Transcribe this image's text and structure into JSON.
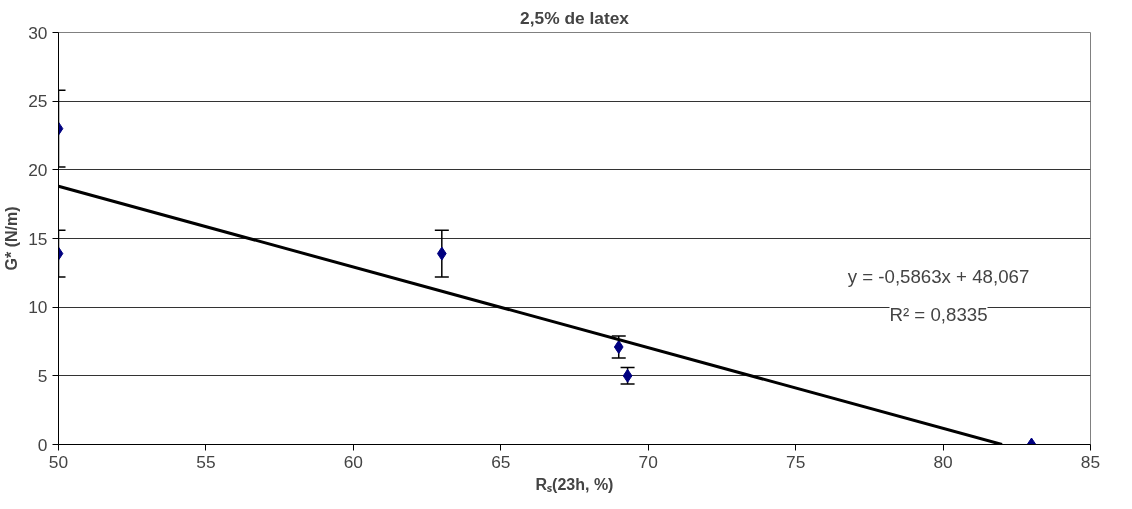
{
  "chart_data": {
    "type": "scatter",
    "title": "2,5% de latex",
    "xlabel": "Rₛ(23h, %)",
    "ylabel": "G* (N/m)",
    "series": [
      {
        "color": "#000080",
        "x": [
          50,
          50,
          63,
          69,
          69.3,
          83
        ],
        "values": [
          23,
          13.9,
          13.9,
          7.1,
          5.0,
          0
        ],
        "errors": [
          2.8,
          1.7,
          1.7,
          0.8,
          0.6,
          null
        ],
        "marker": "diamond"
      },
      {
        "type": "line",
        "color": "#000000",
        "x": [
          50,
          82
        ],
        "values": [
          18.8,
          0.0
        ],
        "marker": "none",
        "line_style": "solid"
      }
    ],
    "annotations": [
      "y = -0,5863x + 48,067",
      "R² = 0,8335"
    ],
    "xlim": [
      50,
      85
    ],
    "ylim": [
      0,
      30
    ],
    "xticks": [
      50,
      55,
      60,
      65,
      70,
      75,
      80,
      85
    ],
    "yticks": [
      0,
      5,
      10,
      15,
      20,
      25,
      30
    ],
    "grid": "y"
  }
}
